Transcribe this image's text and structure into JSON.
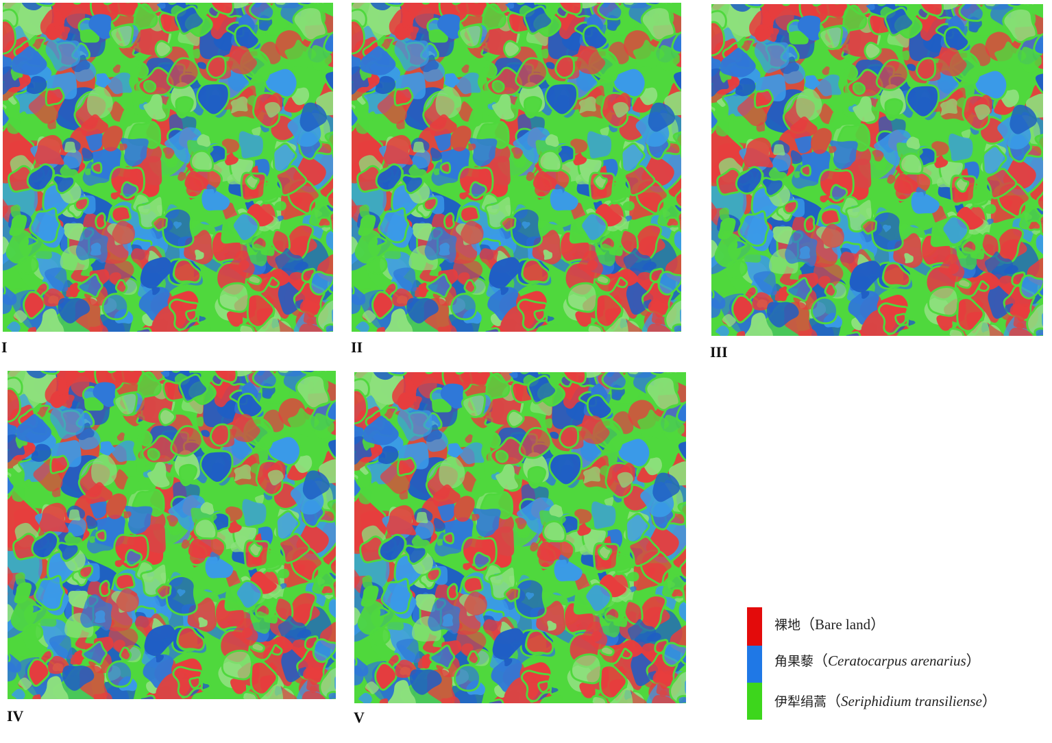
{
  "colors": {
    "bare_land": "#e73d3d",
    "ceratocarpus": "#2f78d8",
    "seriphidium": "#4fd83d"
  },
  "panels": [
    {
      "label": "I"
    },
    {
      "label": "II"
    },
    {
      "label": "III"
    },
    {
      "label": "IV"
    },
    {
      "label": "V"
    }
  ],
  "legend": {
    "items": [
      {
        "zh": "裸地",
        "open": "（",
        "latin": "Bare land",
        "close": "）",
        "italic": false,
        "color": "#e30b0b"
      },
      {
        "zh": "角果藜",
        "open": "（",
        "latin": "Ceratocarpus arenarius",
        "close": "）",
        "italic": true,
        "color": "#1f78e6"
      },
      {
        "zh": "伊犁绢蒿",
        "open": "（",
        "latin": "Seriphidium transiliense",
        "close": "）",
        "italic": true,
        "color": "#3dd61c"
      }
    ]
  }
}
